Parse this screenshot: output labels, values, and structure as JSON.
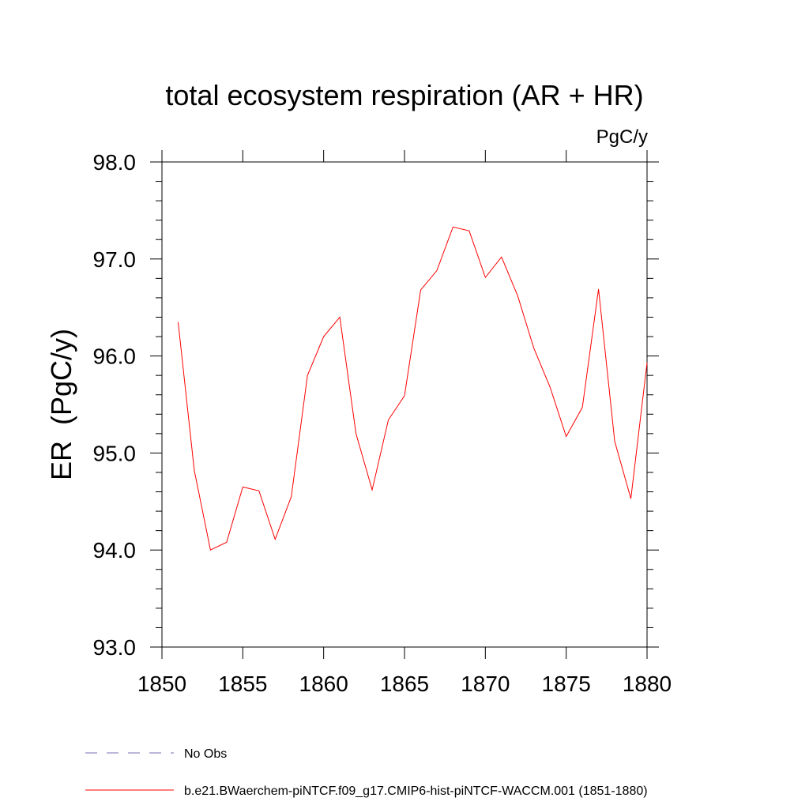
{
  "chart_data": {
    "type": "line",
    "title": "total ecosystem respiration (AR + HR)",
    "units_label": "PgC/y",
    "ylabel": "ER  (PgC/y)",
    "xlabel": "",
    "xlim": [
      1850,
      1880
    ],
    "ylim": [
      93.0,
      98.0
    ],
    "x_ticks": [
      "1850",
      "1855",
      "1860",
      "1865",
      "1870",
      "1875",
      "1880"
    ],
    "y_ticks": [
      "93.0",
      "94.0",
      "95.0",
      "96.0",
      "97.0",
      "98.0"
    ],
    "series": [
      {
        "name": "b.e21.BWaerchem-piNTCF.f09_g17.CMIP6-hist-piNTCF-WACCM.001 (1851-1880)",
        "color": "#ff0000",
        "x": [
          1851,
          1852,
          1853,
          1854,
          1855,
          1856,
          1857,
          1858,
          1859,
          1860,
          1861,
          1862,
          1863,
          1864,
          1865,
          1866,
          1867,
          1868,
          1869,
          1870,
          1871,
          1872,
          1873,
          1874,
          1875,
          1876,
          1877,
          1878,
          1879,
          1880
        ],
        "values": [
          96.35,
          94.82,
          94.0,
          94.08,
          94.65,
          94.61,
          94.11,
          94.55,
          95.8,
          96.2,
          96.4,
          95.2,
          94.62,
          95.34,
          95.59,
          96.68,
          96.88,
          97.33,
          97.29,
          96.81,
          97.02,
          96.62,
          96.08,
          95.68,
          95.17,
          95.47,
          96.69,
          95.12,
          94.53,
          95.93
        ]
      }
    ],
    "legend": {
      "placement": "bottom-left",
      "entries": [
        {
          "label": "No Obs",
          "color": "#7b6fb0",
          "style": "dashed"
        },
        {
          "label": "b.e21.BWaerchem-piNTCF.f09_g17.CMIP6-hist-piNTCF-WACCM.001 (1851-1880)",
          "color": "#ff0000",
          "style": "solid"
        }
      ]
    }
  }
}
